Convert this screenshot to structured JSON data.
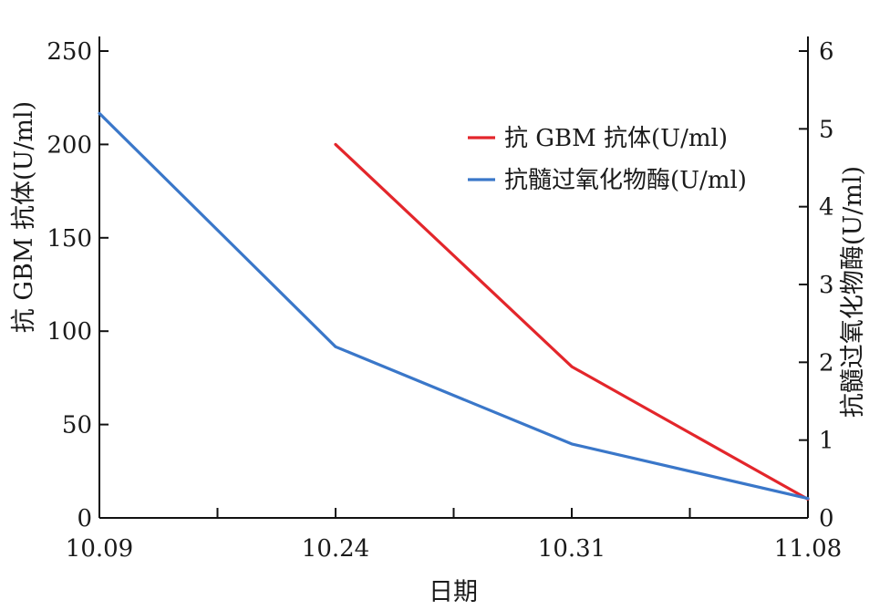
{
  "chart_data": {
    "type": "line",
    "xlabel": "日期",
    "categories": [
      "10.09",
      "10.24",
      "10.31",
      "11.08"
    ],
    "left_axis": {
      "label": "抗 GBM 抗体(U/ml)",
      "ylim": [
        0,
        250
      ],
      "ticks": [
        0,
        50,
        100,
        150,
        200,
        250
      ]
    },
    "right_axis": {
      "label": "抗髓过氧化物酶(U/ml)",
      "ylim": [
        0,
        6
      ],
      "ticks": [
        0,
        1,
        2,
        3,
        4,
        5,
        6
      ]
    },
    "series": [
      {
        "name": "抗 GBM 抗体(U/ml)",
        "axis": "left",
        "color": "#e3262b",
        "values": [
          null,
          200,
          81,
          10
        ]
      },
      {
        "name": "抗髓过氧化物酶(U/ml)",
        "axis": "right",
        "color": "#3a77c9",
        "values": [
          5.2,
          2.2,
          0.95,
          0.25
        ]
      }
    ],
    "legend_position": "top-right",
    "grid": false
  }
}
